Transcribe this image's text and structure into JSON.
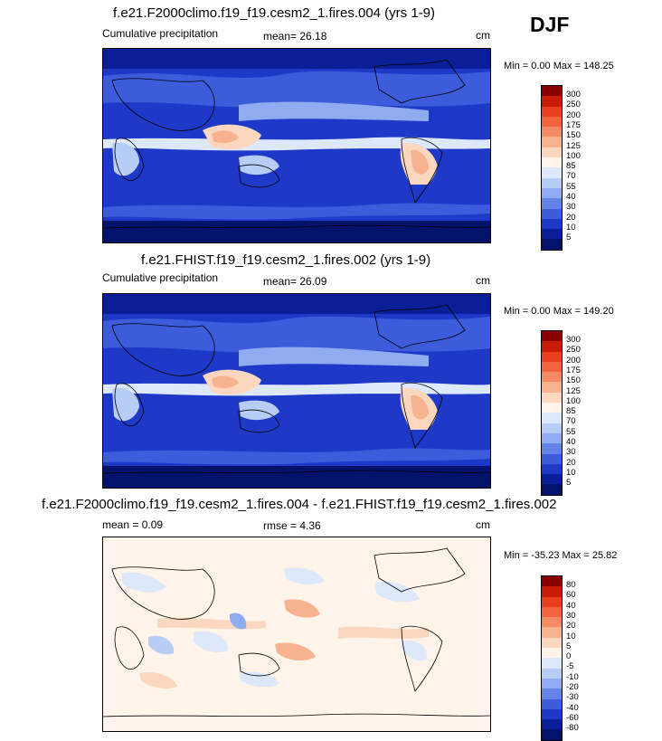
{
  "season": "DJF",
  "panels": [
    {
      "title": "f.e21.F2000climo.f19_f19.cesm2_1.fires.004 (yrs 1-9)",
      "left_label": "Cumulative precipitation",
      "center_label": "mean=  26.18",
      "right_label": "cm",
      "minmax": "Min =   0.00 Max = 148.25",
      "colorbar": {
        "labels": [
          "300",
          "250",
          "200",
          "175",
          "150",
          "125",
          "100",
          "85",
          "70",
          "55",
          "40",
          "30",
          "20",
          "10",
          "5"
        ],
        "colors": [
          "#8a0000",
          "#c81c08",
          "#e8401c",
          "#f2643e",
          "#f58a66",
          "#f8b290",
          "#fcd7bf",
          "#fff4e9",
          "#dde8fa",
          "#b8cdf5",
          "#8facf0",
          "#6384e6",
          "#3c5cdc",
          "#1e38c8",
          "#0a1e98",
          "#03126b"
        ]
      }
    },
    {
      "title": "f.e21.FHIST.f19_f19.cesm2_1.fires.002 (yrs 1-9)",
      "left_label": "Cumulative precipitation",
      "center_label": "mean=  26.09",
      "right_label": "cm",
      "minmax": "Min =   0.00 Max = 149.20",
      "colorbar": {
        "labels": [
          "300",
          "250",
          "200",
          "175",
          "150",
          "125",
          "100",
          "85",
          "70",
          "55",
          "40",
          "30",
          "20",
          "10",
          "5"
        ],
        "colors": [
          "#8a0000",
          "#c81c08",
          "#e8401c",
          "#f2643e",
          "#f58a66",
          "#f8b290",
          "#fcd7bf",
          "#fff4e9",
          "#dde8fa",
          "#b8cdf5",
          "#8facf0",
          "#6384e6",
          "#3c5cdc",
          "#1e38c8",
          "#0a1e98",
          "#03126b"
        ]
      }
    },
    {
      "title": "f.e21.F2000climo.f19_f19.cesm2_1.fires.004 - f.e21.FHIST.f19_f19.cesm2_1.fires.002",
      "left_label": "mean =  0.09",
      "center_label": "rmse =  4.36",
      "right_label": "cm",
      "minmax": "Min = -35.23 Max =  25.82",
      "colorbar": {
        "labels": [
          "80",
          "60",
          "40",
          "30",
          "20",
          "10",
          "5",
          "0",
          "-5",
          "-10",
          "-20",
          "-30",
          "-40",
          "-60",
          "-80"
        ],
        "colors": [
          "#8a0000",
          "#c81c08",
          "#e8401c",
          "#f2643e",
          "#f58a66",
          "#f8b290",
          "#fcd7bf",
          "#fff4e9",
          "#dde8fa",
          "#b8cdf5",
          "#8facf0",
          "#6384e6",
          "#3c5cdc",
          "#1e38c8",
          "#0a1e98",
          "#03126b"
        ]
      }
    }
  ]
}
